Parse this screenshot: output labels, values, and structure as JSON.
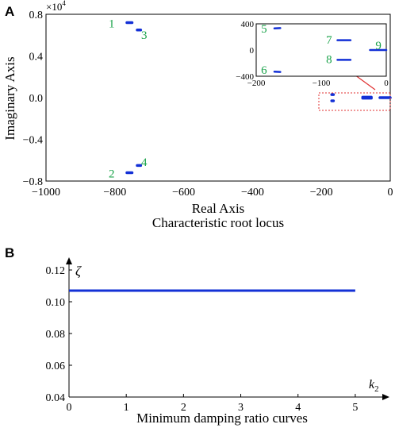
{
  "panel_a": {
    "letter": "A",
    "multiplier": "×10",
    "multiplier_exp": "4",
    "xlabel": "Real Axis",
    "ylabel": "Imaginary  Axis",
    "caption": "Characteristic root locus",
    "inset_xticks": [
      "−200",
      "−100",
      "0"
    ],
    "inset_yticks": [
      "400",
      "0",
      "−400"
    ]
  },
  "panel_b": {
    "letter": "B",
    "ylabel": "ζ",
    "xlabel_main": "k",
    "xlabel_sub": "2",
    "caption": "Minimum damping ratio curves"
  },
  "colors": {
    "data": "#1330d6",
    "labels": "#1aa34a",
    "highlight": "#e03030"
  },
  "chart_data": [
    {
      "type": "scatter",
      "title": "Characteristic root locus",
      "xlabel": "Real Axis",
      "ylabel": "Imaginary  Axis",
      "xlim": [
        -1000,
        0
      ],
      "ylim": [
        -0.8,
        0.8
      ],
      "y_multiplier": "×10^4",
      "xticks": [
        "−1000",
        "−800",
        "−600",
        "−400",
        "−200",
        "0"
      ],
      "yticks": [
        "0.8",
        "0.4",
        "0.0",
        "−0.4",
        "−0.8"
      ],
      "series": [
        {
          "label": "1",
          "x": [
            -765,
            -750
          ],
          "y": [
            0.72,
            0.72
          ]
        },
        {
          "label": "2",
          "x": [
            -765,
            -750
          ],
          "y": [
            -0.72,
            -0.72
          ]
        },
        {
          "label": "3",
          "x": [
            -735,
            -725
          ],
          "y": [
            0.65,
            0.65
          ]
        },
        {
          "label": "4",
          "x": [
            -735,
            -725
          ],
          "y": [
            -0.65,
            -0.65
          ]
        },
        {
          "label": "5-9 (inset region)",
          "x": [
            -170,
            -165,
            -75,
            -60,
            -20,
            -5
          ],
          "y": [
            0.03,
            -0.03,
            0.002,
            -0.002,
            0.0,
            0.0
          ]
        }
      ],
      "inset": {
        "xlim": [
          -200,
          0
        ],
        "ylim": [
          -400,
          400
        ],
        "xticks": [
          "−200",
          "−100",
          "0"
        ],
        "yticks": [
          "400",
          "0",
          "−400"
        ],
        "series": [
          {
            "label": "5",
            "x": [
              -172,
              -163
            ],
            "y": [
              330,
              335
            ]
          },
          {
            "label": "6",
            "x": [
              -172,
              -163
            ],
            "y": [
              -330,
              -335
            ]
          },
          {
            "label": "7",
            "x": [
              -75,
              -55
            ],
            "y": [
              150,
              150
            ]
          },
          {
            "label": "8",
            "x": [
              -75,
              -55
            ],
            "y": [
              -150,
              -150
            ]
          },
          {
            "label": "9",
            "x": [
              -25,
              0
            ],
            "y": [
              0,
              0
            ]
          }
        ]
      }
    },
    {
      "type": "line",
      "title": "Minimum damping ratio curves",
      "xlabel": "k2",
      "ylabel": "ζ",
      "xlim": [
        0,
        5.5
      ],
      "ylim": [
        0.04,
        0.12
      ],
      "xticks": [
        "0",
        "1",
        "2",
        "3",
        "4",
        "5"
      ],
      "yticks": [
        "0.12",
        "0.10",
        "0.08",
        "0.06",
        "0.04"
      ],
      "series": [
        {
          "x": [
            0,
            5
          ],
          "y": [
            0.107,
            0.107
          ]
        }
      ]
    }
  ]
}
